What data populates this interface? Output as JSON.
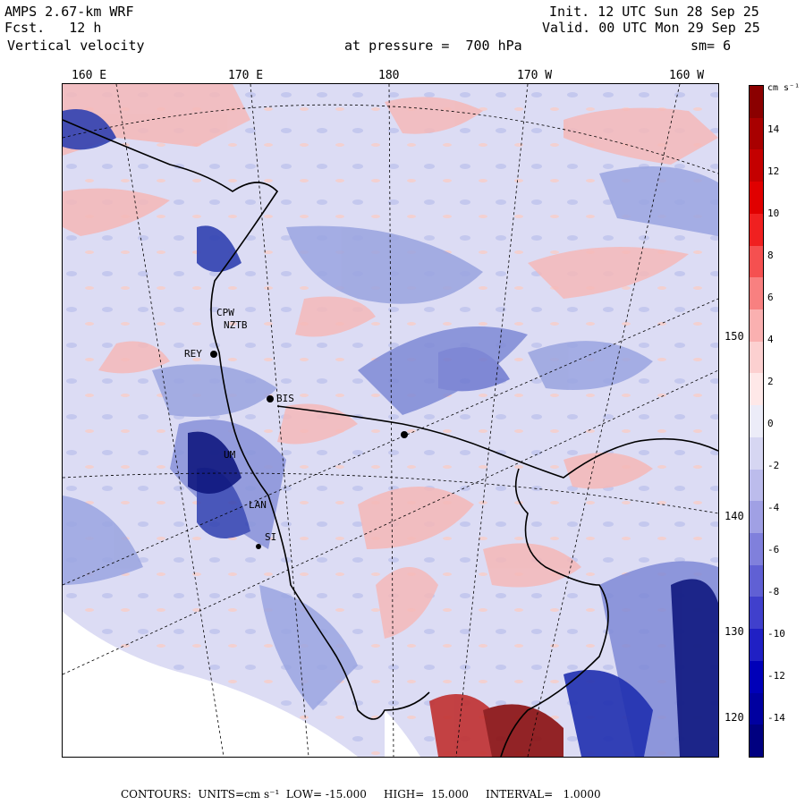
{
  "header": {
    "line1_left": "AMPS 2.67-km WRF",
    "line2_left": "Fcst.   12 h",
    "line3_left": "Vertical velocity",
    "line1_right": "Init. 12 UTC Sun 28 Sep 25",
    "line2_right": "Valid. 00 UTC Mon 29 Sep 25",
    "pressure": "at pressure =  700 hPa",
    "smoothing": "sm= 6"
  },
  "lon_labels": [
    "160 E",
    "170 E",
    "180",
    "170 W",
    "160 W"
  ],
  "lat_labels": [
    "150 W",
    "140 W",
    "130 W",
    "120 W"
  ],
  "stations": [
    "CPW",
    "NZTB",
    "REY",
    "BIS",
    "UM",
    "LAN",
    "SI"
  ],
  "colorbar": {
    "unit": "cm s⁻¹",
    "ticks": [
      "14",
      "12",
      "10",
      "8",
      "6",
      "4",
      "2",
      "0",
      "-2",
      "-4",
      "-6",
      "-8",
      "-10",
      "-12",
      "-14"
    ],
    "colors": [
      "#8b0000",
      "#a80000",
      "#c40000",
      "#e00000",
      "#f02020",
      "#f55050",
      "#f88080",
      "#fab0b0",
      "#fcd0d0",
      "#fee8e8",
      "#ececf8",
      "#d6d6f2",
      "#bcbcec",
      "#a0a0e4",
      "#8080dc",
      "#6060d4",
      "#4040cc",
      "#2020c4",
      "#0000b8",
      "#0000a0",
      "#000080"
    ]
  },
  "footer": {
    "contours": "CONTOURS:  UNITS=cm s⁻¹  LOW= -15.000     HIGH=  15.000     INTERVAL=   1.0000"
  },
  "map": {
    "background_color": "#dcdcf4",
    "positive_color": "#f5b8b8",
    "negative_color": "#9aa4e0",
    "land_color": "#ffffff"
  }
}
